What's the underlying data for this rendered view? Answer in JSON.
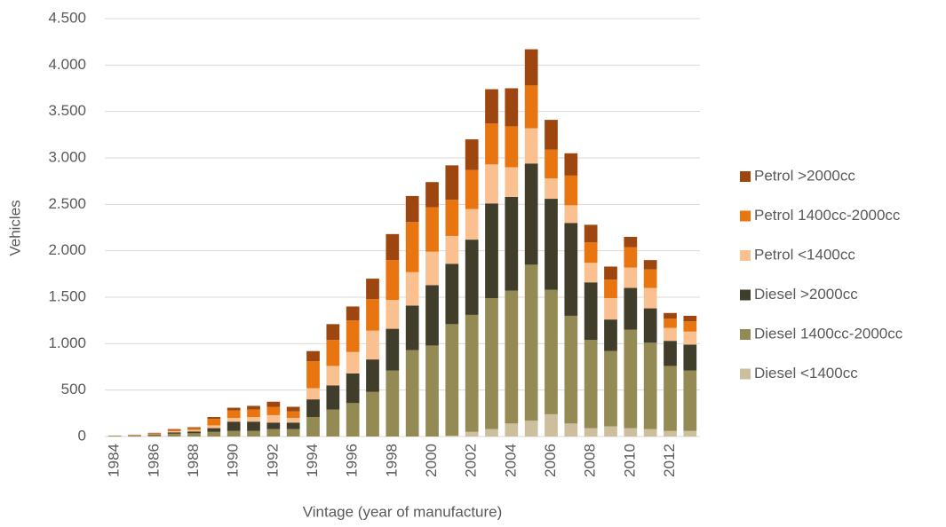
{
  "chart_data": {
    "type": "stacked_bar",
    "xlabel": "Vintage (year of manufacture)",
    "ylabel": "Vehicles",
    "categories": [
      "1984",
      null,
      "1986",
      null,
      "1988",
      null,
      "1990",
      null,
      "1992",
      null,
      "1994",
      null,
      "1996",
      null,
      "1998",
      null,
      "2000",
      null,
      "2002",
      null,
      "2004",
      null,
      "2006",
      null,
      "2008",
      null,
      "2010",
      null,
      "2012",
      null
    ],
    "ylim": [
      0,
      4500
    ],
    "yticks": [
      0,
      500,
      {
        "value": 1000,
        "label": "1.000"
      },
      {
        "value": 1500,
        "label": "1.500"
      },
      {
        "value": 2000,
        "label": "2.000"
      },
      {
        "value": 2500,
        "label": "2.500"
      },
      {
        "value": 3000,
        "label": "3.000"
      },
      {
        "value": 3500,
        "label": "3.500"
      },
      {
        "value": 4000,
        "label": "4.000"
      },
      {
        "value": 4500,
        "label": "4.500"
      }
    ],
    "grid": true,
    "legend": "right",
    "series": [
      {
        "name": "Diesel <1400cc",
        "color": "#cdbf9e",
        "values": [
          0,
          0,
          0,
          0,
          0,
          0,
          0,
          0,
          0,
          0,
          0,
          0,
          0,
          0,
          0,
          0,
          0,
          10,
          50,
          80,
          140,
          170,
          240,
          140,
          90,
          110,
          90,
          80,
          60,
          60
        ]
      },
      {
        "name": "Diesel 1400cc-2000cc",
        "color": "#948a54",
        "values": [
          5,
          8,
          15,
          30,
          35,
          50,
          60,
          60,
          80,
          80,
          210,
          290,
          360,
          480,
          710,
          930,
          980,
          1200,
          1260,
          1410,
          1430,
          1680,
          1340,
          1160,
          950,
          810,
          1060,
          930,
          700,
          650
        ]
      },
      {
        "name": "Diesel >2000cc",
        "color": "#403d2a",
        "values": [
          2,
          4,
          8,
          15,
          20,
          40,
          100,
          100,
          70,
          70,
          190,
          260,
          320,
          350,
          450,
          480,
          650,
          650,
          810,
          1020,
          1010,
          1090,
          980,
          1000,
          620,
          340,
          450,
          370,
          270,
          280
        ]
      },
      {
        "name": "Petrol <1400cc",
        "color": "#fac090",
        "values": [
          1,
          3,
          6,
          12,
          15,
          30,
          40,
          50,
          80,
          50,
          120,
          210,
          230,
          310,
          310,
          360,
          360,
          300,
          330,
          420,
          320,
          380,
          220,
          190,
          210,
          230,
          220,
          220,
          140,
          140
        ]
      },
      {
        "name": "Petrol 1400cc-2000cc",
        "color": "#e8750f",
        "values": [
          1,
          3,
          6,
          13,
          18,
          70,
          80,
          80,
          90,
          70,
          290,
          280,
          340,
          340,
          430,
          540,
          480,
          390,
          420,
          440,
          440,
          460,
          310,
          320,
          220,
          200,
          220,
          200,
          100,
          110
        ]
      },
      {
        "name": "Petrol >2000cc",
        "color": "#9e4610",
        "values": [
          1,
          2,
          5,
          10,
          12,
          20,
          30,
          40,
          55,
          50,
          110,
          170,
          150,
          220,
          280,
          280,
          270,
          370,
          330,
          370,
          410,
          390,
          320,
          240,
          190,
          140,
          110,
          100,
          60,
          60
        ]
      }
    ]
  }
}
